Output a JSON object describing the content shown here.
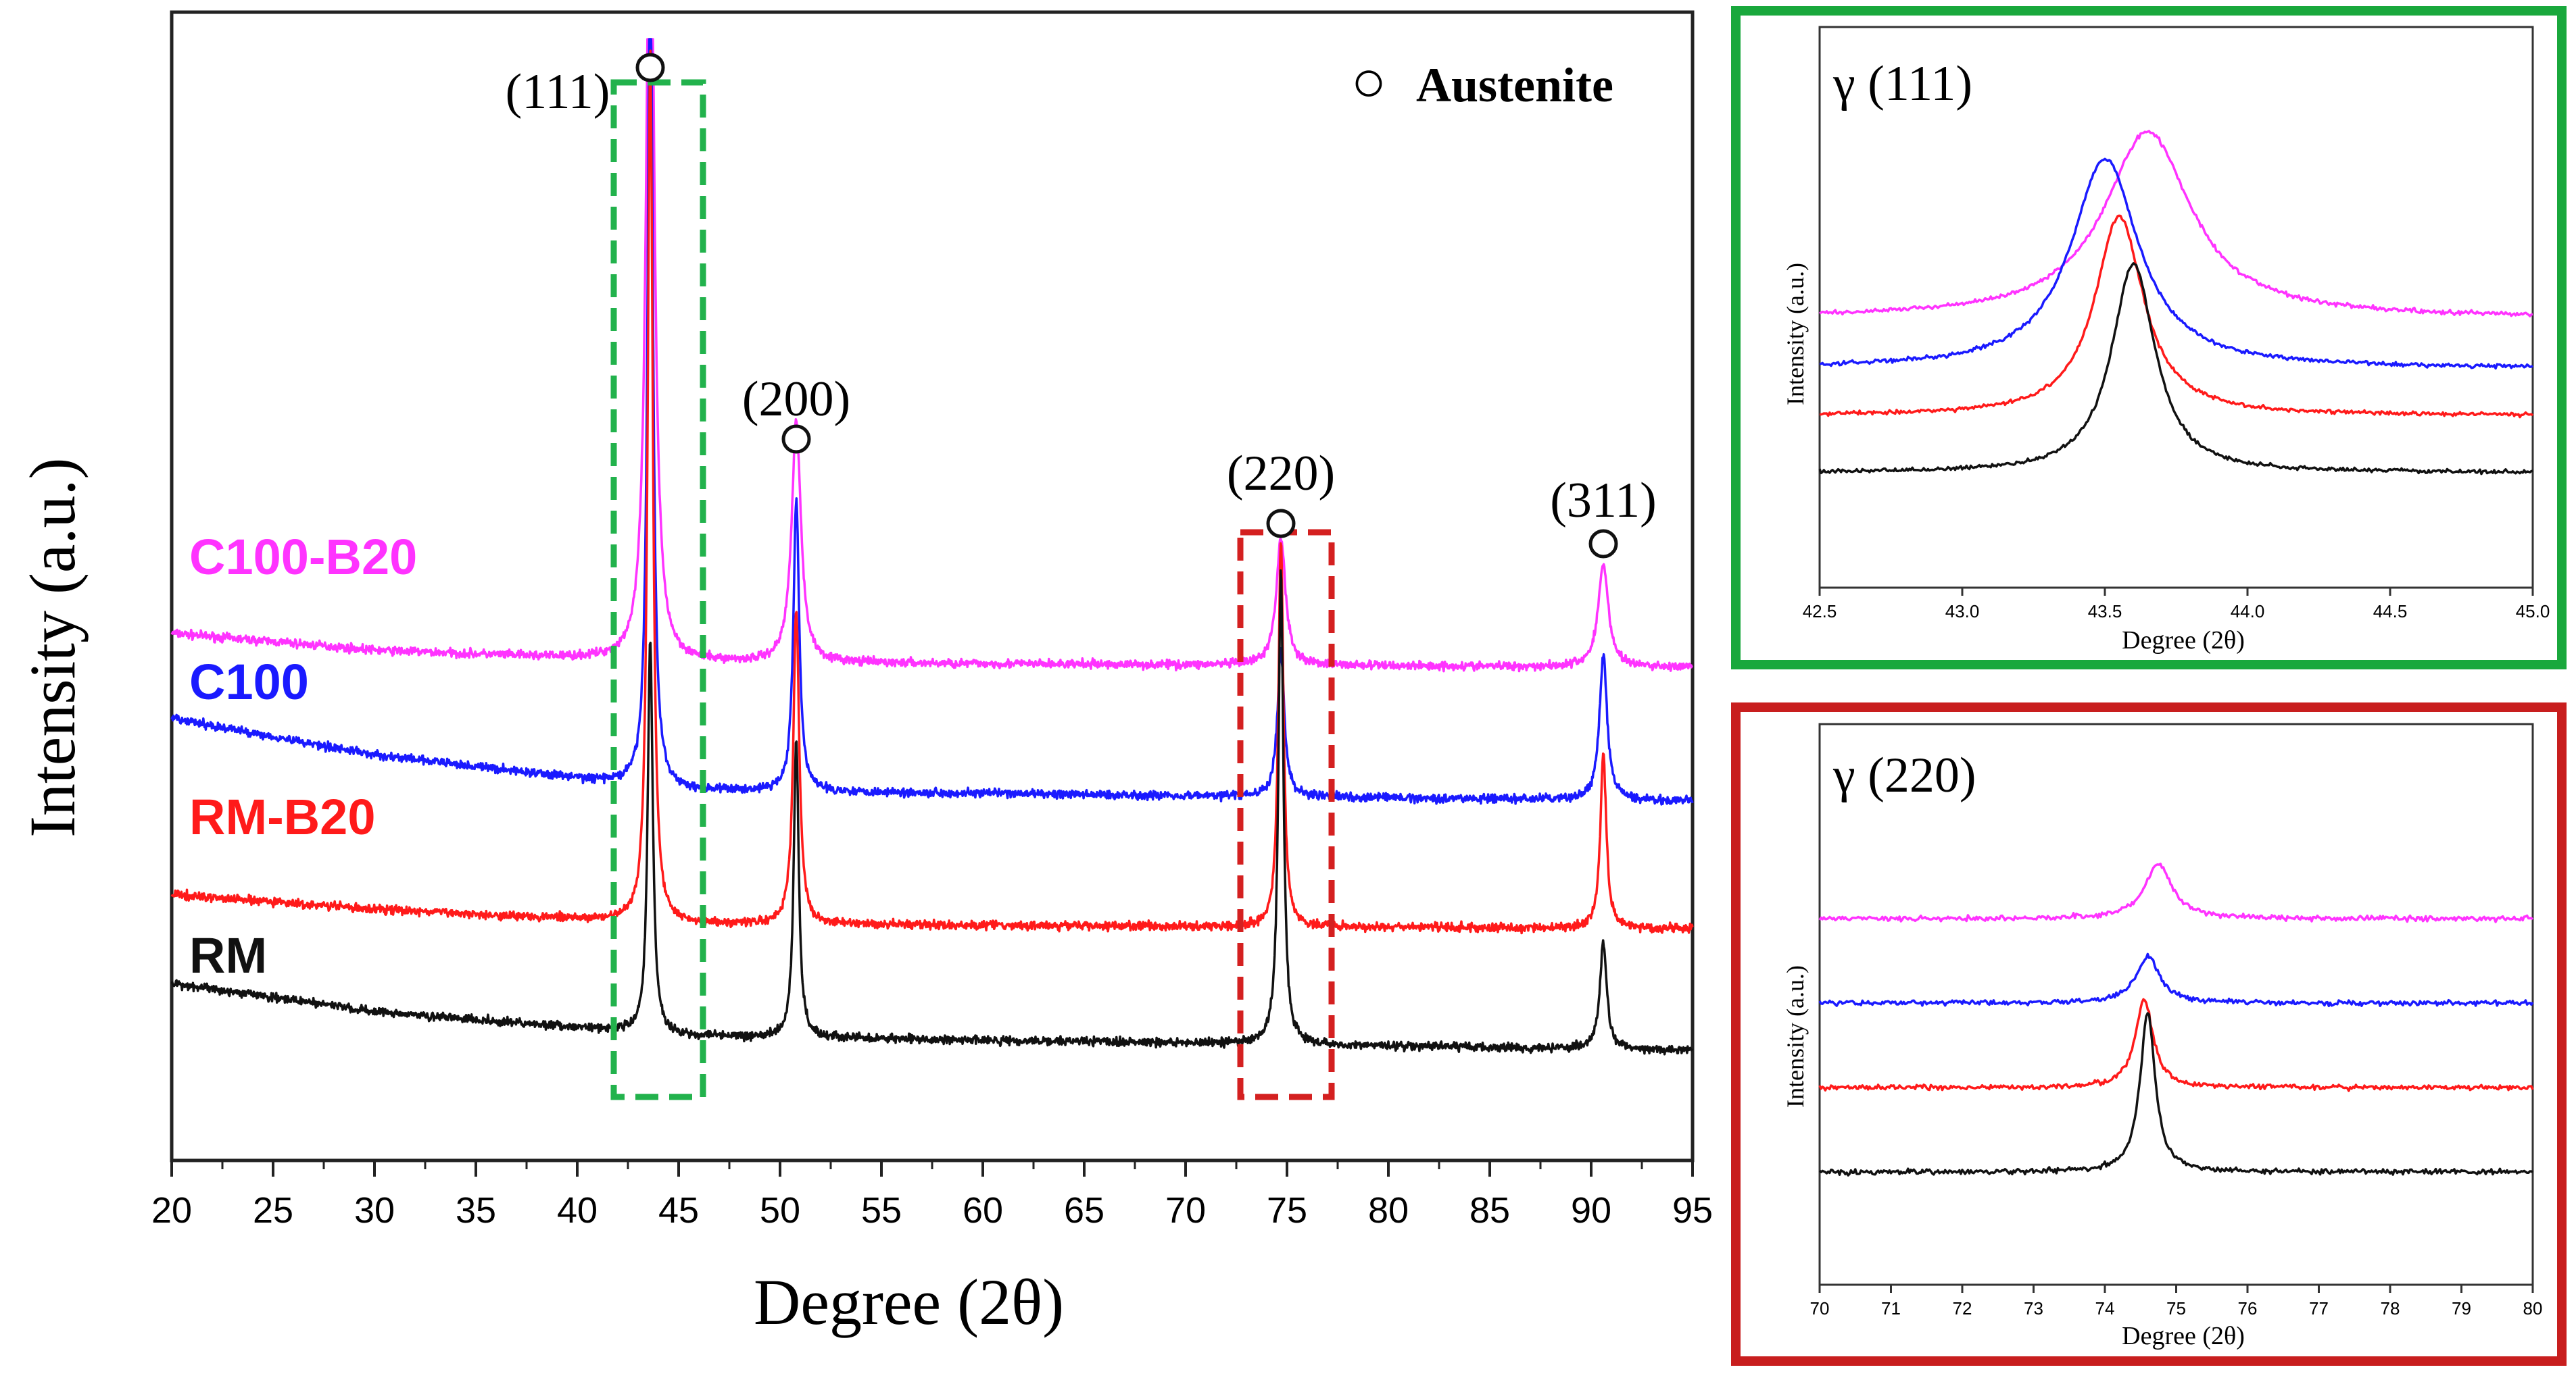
{
  "chart_data": [
    {
      "type": "line",
      "panel": "main",
      "title": "",
      "xlabel": "Degree (2θ)",
      "ylabel": "Intensity (a.u.)",
      "xlim": [
        20,
        95
      ],
      "x_ticks": [
        "20",
        "25",
        "30",
        "35",
        "40",
        "45",
        "50",
        "55",
        "60",
        "65",
        "70",
        "75",
        "80",
        "85",
        "90",
        "95"
      ],
      "legend": {
        "symbol": "○",
        "label": "Austenite",
        "placement": "top-right"
      },
      "peak_annotations": [
        {
          "label": "(111)",
          "x": 43.6
        },
        {
          "label": "(200)",
          "x": 50.8
        },
        {
          "label": "(220)",
          "x": 74.7
        },
        {
          "label": "(311)",
          "x": 90.6
        }
      ],
      "highlight_boxes": [
        {
          "name": "111-region",
          "xrange": [
            41.8,
            46.2
          ],
          "color": "#22b24c"
        },
        {
          "name": "220-region",
          "xrange": [
            72.7,
            77.2
          ],
          "color": "#d42020"
        }
      ],
      "series": [
        {
          "name": "C100-B20",
          "color": "#ff33ff",
          "baseline": 0.88,
          "offset": 3.15,
          "background": [
            [
              20,
              0.28
            ],
            [
              30,
              0.14
            ],
            [
              45,
              0.04
            ],
            [
              95,
              0.0
            ]
          ],
          "peaks": [
            {
              "x": 43.6,
              "height": 7.2,
              "width": 0.45
            },
            {
              "x": 50.8,
              "height": 2.0,
              "width": 0.55
            },
            {
              "x": 74.7,
              "height": 1.05,
              "width": 0.55
            },
            {
              "x": 90.6,
              "height": 0.85,
              "width": 0.6
            }
          ]
        },
        {
          "name": "C100",
          "color": "#1a1aff",
          "baseline": 0.88,
          "offset": 2.05,
          "background": [
            [
              20,
              0.68
            ],
            [
              30,
              0.38
            ],
            [
              45,
              0.09
            ],
            [
              95,
              0.0
            ]
          ],
          "peaks": [
            {
              "x": 43.6,
              "height": 7.2,
              "width": 0.3
            },
            {
              "x": 50.8,
              "height": 2.4,
              "width": 0.35
            },
            {
              "x": 74.7,
              "height": 1.2,
              "width": 0.4
            },
            {
              "x": 90.6,
              "height": 1.2,
              "width": 0.45
            }
          ]
        },
        {
          "name": "RM-B20",
          "color": "#ff1a1a",
          "baseline": 0.88,
          "offset": 1.0,
          "background": [
            [
              20,
              0.28
            ],
            [
              30,
              0.16
            ],
            [
              45,
              0.04
            ],
            [
              95,
              0.0
            ]
          ],
          "peaks": [
            {
              "x": 43.6,
              "height": 7.2,
              "width": 0.3
            },
            {
              "x": 50.8,
              "height": 2.6,
              "width": 0.35
            },
            {
              "x": 74.7,
              "height": 3.2,
              "width": 0.3
            },
            {
              "x": 90.6,
              "height": 1.45,
              "width": 0.35
            }
          ]
        },
        {
          "name": "RM",
          "color": "#111111",
          "baseline": 0.0,
          "offset": 0.0,
          "background": [
            [
              20,
              0.55
            ],
            [
              30,
              0.32
            ],
            [
              45,
              0.12
            ],
            [
              95,
              0.0
            ]
          ],
          "peaks": [
            {
              "x": 43.6,
              "height": 3.25,
              "width": 0.3
            },
            {
              "x": 50.8,
              "height": 2.45,
              "width": 0.3
            },
            {
              "x": 74.7,
              "height": 3.9,
              "width": 0.3
            },
            {
              "x": 90.6,
              "height": 0.88,
              "width": 0.4
            }
          ]
        }
      ]
    },
    {
      "type": "line",
      "panel": "inset-111",
      "title": "γ (111)",
      "xlabel": "Degree (2θ)",
      "ylabel": "Intensity (a.u.)",
      "xlim": [
        42.5,
        45.0
      ],
      "x_ticks": [
        "42.5",
        "43.0",
        "43.5",
        "44.0",
        "44.5",
        "45.0"
      ],
      "frame_color": "#19a83c",
      "series": [
        {
          "name": "C100-B20",
          "color": "#ff33ff",
          "offset": 2.3,
          "peak_x": 43.65,
          "height": 2.75,
          "width": 0.32
        },
        {
          "name": "C100",
          "color": "#1a1aff",
          "offset": 1.55,
          "peak_x": 43.5,
          "height": 3.1,
          "width": 0.25
        },
        {
          "name": "RM-B20",
          "color": "#ff1a1a",
          "offset": 0.85,
          "peak_x": 43.55,
          "height": 2.95,
          "width": 0.18
        },
        {
          "name": "RM",
          "color": "#111111",
          "offset": 0.0,
          "peak_x": 43.6,
          "height": 3.1,
          "width": 0.16
        }
      ]
    },
    {
      "type": "line",
      "panel": "inset-220",
      "title": "γ (220)",
      "xlabel": "Degree (2θ)",
      "ylabel": "Intensity (a.u.)",
      "xlim": [
        70,
        80
      ],
      "x_ticks": [
        "70",
        "71",
        "72",
        "73",
        "74",
        "75",
        "76",
        "77",
        "78",
        "79",
        "80"
      ],
      "frame_color": "#c81e1e",
      "series": [
        {
          "name": "C100-B20",
          "color": "#ff33ff",
          "offset": 3.0,
          "peak_x": 74.75,
          "height": 0.65,
          "width": 0.4
        },
        {
          "name": "C100",
          "color": "#1a1aff",
          "offset": 2.0,
          "peak_x": 74.6,
          "height": 0.55,
          "width": 0.35
        },
        {
          "name": "RM-B20",
          "color": "#ff1a1a",
          "offset": 1.0,
          "peak_x": 74.55,
          "height": 1.05,
          "width": 0.26
        },
        {
          "name": "RM",
          "color": "#111111",
          "offset": 0.0,
          "peak_x": 74.6,
          "height": 1.9,
          "width": 0.22
        }
      ]
    }
  ]
}
